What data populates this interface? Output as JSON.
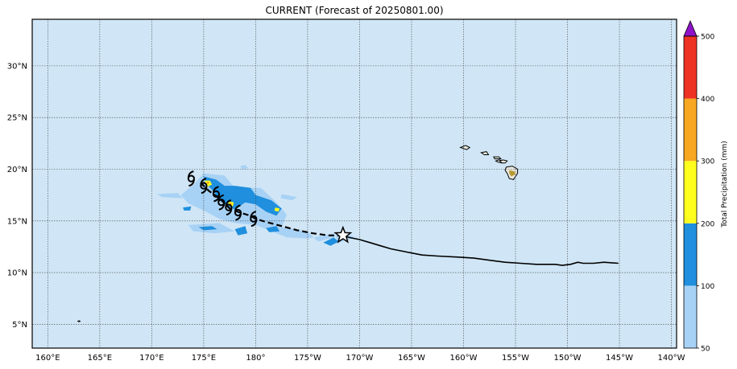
{
  "title": "CURRENT (Forecast of 20250801.00)",
  "map": {
    "lon_range": [
      158.5,
      220.5
    ],
    "lat_range": [
      2.7,
      34.5
    ],
    "lon_ticks": [
      {
        "lon": 160,
        "label": "160°E"
      },
      {
        "lon": 165,
        "label": "165°E"
      },
      {
        "lon": 170,
        "label": "170°E"
      },
      {
        "lon": 175,
        "label": "175°E"
      },
      {
        "lon": 180,
        "label": "180°"
      },
      {
        "lon": 185,
        "label": "175°W"
      },
      {
        "lon": 190,
        "label": "170°W"
      },
      {
        "lon": 195,
        "label": "165°W"
      },
      {
        "lon": 200,
        "label": "160°W"
      },
      {
        "lon": 205,
        "label": "155°W"
      },
      {
        "lon": 210,
        "label": "150°W"
      },
      {
        "lon": 215,
        "label": "145°W"
      },
      {
        "lon": 220,
        "label": "140°W"
      }
    ],
    "lat_ticks": [
      {
        "lat": 5,
        "label": "5°N"
      },
      {
        "lat": 10,
        "label": "10°N"
      },
      {
        "lat": 15,
        "label": "15°N"
      },
      {
        "lat": 20,
        "label": "20°N"
      },
      {
        "lat": 25,
        "label": "25°N"
      },
      {
        "lat": 30,
        "label": "30°N"
      }
    ],
    "ocean_color": "#d0e6f6",
    "grid": true
  },
  "colorbar": {
    "label": "Total Precipitation (mm)",
    "levels": [
      50,
      100,
      200,
      300,
      400,
      500
    ],
    "colors": [
      "#a8d2f5",
      "#1f8fde",
      "#ffff1e",
      "#f7a722",
      "#ee3224"
    ],
    "extend_color": "#8f12c8"
  },
  "track": {
    "observed": [
      [
        214.9,
        10.9
      ],
      [
        213.5,
        11.0
      ],
      [
        212.5,
        10.9
      ],
      [
        211.5,
        10.9
      ],
      [
        211.0,
        11.0
      ],
      [
        210.3,
        10.8
      ],
      [
        209.5,
        10.7
      ],
      [
        208.8,
        10.8
      ],
      [
        208.0,
        10.8
      ],
      [
        207.0,
        10.8
      ],
      [
        205.5,
        10.9
      ],
      [
        204.0,
        11.0
      ],
      [
        202.5,
        11.2
      ],
      [
        201.0,
        11.4
      ],
      [
        199.5,
        11.5
      ],
      [
        197.5,
        11.6
      ],
      [
        196.0,
        11.7
      ],
      [
        195.0,
        11.9
      ],
      [
        194.0,
        12.1
      ],
      [
        193.0,
        12.3
      ],
      [
        192.0,
        12.6
      ],
      [
        191.0,
        12.9
      ],
      [
        190.0,
        13.2
      ],
      [
        189.0,
        13.4
      ],
      [
        188.4,
        13.6
      ]
    ],
    "forecast": [
      [
        188.4,
        13.6
      ],
      [
        187.0,
        13.6
      ],
      [
        185.5,
        13.8
      ],
      [
        184.0,
        14.1
      ],
      [
        182.5,
        14.5
      ],
      [
        181.0,
        14.9
      ],
      [
        180.0,
        15.2
      ],
      [
        179.5,
        15.5
      ],
      [
        178.5,
        15.8
      ],
      [
        177.5,
        16.2
      ],
      [
        176.5,
        17.2
      ],
      [
        175.5,
        17.9
      ],
      [
        175.0,
        18.4
      ],
      [
        174.5,
        18.8
      ]
    ],
    "current_position": [
      188.4,
      13.6
    ],
    "cyclone_symbols": [
      [
        179.8,
        15.2
      ],
      [
        178.3,
        15.8
      ],
      [
        177.4,
        16.3
      ],
      [
        176.7,
        16.8
      ],
      [
        176.2,
        17.6
      ],
      [
        175.0,
        18.4
      ],
      [
        173.8,
        19.1
      ]
    ]
  },
  "islands": [
    [
      [
        199.7,
        22.1
      ],
      [
        200.2,
        22.3
      ],
      [
        200.6,
        22.1
      ],
      [
        200.3,
        21.9
      ]
    ],
    [
      [
        201.7,
        21.6
      ],
      [
        202.2,
        21.7
      ],
      [
        202.4,
        21.4
      ],
      [
        202.0,
        21.4
      ]
    ],
    [
      [
        202.9,
        21.2
      ],
      [
        203.4,
        21.2
      ],
      [
        203.6,
        21.0
      ],
      [
        203.0,
        21.0
      ]
    ],
    [
      [
        203.4,
        20.9
      ],
      [
        203.8,
        20.8
      ],
      [
        203.7,
        20.6
      ],
      [
        203.3,
        20.7
      ],
      [
        203.1,
        20.8
      ]
    ],
    [
      [
        203.5,
        20.8
      ],
      [
        203.8,
        20.9
      ],
      [
        204.2,
        20.8
      ],
      [
        204.0,
        20.6
      ],
      [
        203.7,
        20.6
      ]
    ],
    [
      [
        204.1,
        20.2
      ],
      [
        204.7,
        20.3
      ],
      [
        205.2,
        20.0
      ],
      [
        205.2,
        19.6
      ],
      [
        204.8,
        19.0
      ],
      [
        204.4,
        19.1
      ],
      [
        204.2,
        19.6
      ],
      [
        204.0,
        19.9
      ]
    ],
    [
      [
        162.9,
        5.3
      ],
      [
        163.0,
        5.35
      ],
      [
        163.1,
        5.3
      ],
      [
        163.0,
        5.25
      ]
    ]
  ],
  "precip": [
    {
      "level": 0,
      "poly": [
        [
          175.0,
          19.6
        ],
        [
          177.0,
          19.4
        ],
        [
          178.0,
          18.2
        ],
        [
          180.5,
          18.2
        ],
        [
          182.0,
          16.8
        ],
        [
          183.0,
          15.6
        ],
        [
          182.5,
          14.4
        ],
        [
          185.0,
          14.0
        ],
        [
          186.0,
          13.0
        ],
        [
          187.5,
          13.4
        ],
        [
          188.5,
          14.0
        ],
        [
          189.5,
          13.4
        ],
        [
          188.0,
          12.9
        ],
        [
          187.5,
          13.8
        ],
        [
          185.0,
          13.3
        ],
        [
          183.0,
          13.4
        ],
        [
          181.0,
          14.2
        ],
        [
          180.0,
          14.6
        ],
        [
          178.0,
          14.8
        ],
        [
          176.5,
          15.2
        ],
        [
          175.0,
          16.0
        ],
        [
          173.5,
          16.7
        ],
        [
          172.8,
          17.5
        ],
        [
          174.0,
          18.5
        ]
      ]
    },
    {
      "level": 0,
      "poly": [
        [
          170.5,
          17.6
        ],
        [
          172.5,
          17.7
        ],
        [
          173.0,
          17.2
        ],
        [
          171.0,
          17.3
        ]
      ]
    },
    {
      "level": 0,
      "poly": [
        [
          173.5,
          14.6
        ],
        [
          176.5,
          14.8
        ],
        [
          178.0,
          14.0
        ],
        [
          176.0,
          13.8
        ],
        [
          174.0,
          14.0
        ]
      ]
    },
    {
      "level": 0,
      "poly": [
        [
          178.5,
          20.3
        ],
        [
          179.0,
          20.4
        ],
        [
          179.3,
          20.1
        ],
        [
          178.7,
          20.0
        ]
      ]
    },
    {
      "level": 0,
      "poly": [
        [
          182.5,
          17.6
        ],
        [
          184.0,
          17.3
        ],
        [
          183.5,
          17.0
        ],
        [
          182.4,
          17.2
        ]
      ]
    },
    {
      "level": 1,
      "poly": [
        [
          175.0,
          19.3
        ],
        [
          176.2,
          19.0
        ],
        [
          177.0,
          18.4
        ],
        [
          178.0,
          18.4
        ],
        [
          179.5,
          18.2
        ],
        [
          180.0,
          17.5
        ],
        [
          181.5,
          17.0
        ],
        [
          182.5,
          16.2
        ],
        [
          182.0,
          15.5
        ],
        [
          181.0,
          15.9
        ],
        [
          180.0,
          16.6
        ],
        [
          179.0,
          16.8
        ],
        [
          178.0,
          16.1
        ],
        [
          177.2,
          16.5
        ],
        [
          176.5,
          17.0
        ],
        [
          176.0,
          17.8
        ],
        [
          175.2,
          18.6
        ]
      ]
    },
    {
      "level": 1,
      "poly": [
        [
          174.5,
          14.4
        ],
        [
          175.8,
          14.5
        ],
        [
          176.3,
          14.2
        ],
        [
          175.0,
          14.1
        ]
      ]
    },
    {
      "level": 1,
      "poly": [
        [
          178.0,
          14.2
        ],
        [
          179.0,
          14.5
        ],
        [
          179.2,
          13.8
        ],
        [
          178.3,
          13.6
        ]
      ]
    },
    {
      "level": 1,
      "poly": [
        [
          181.0,
          14.3
        ],
        [
          182.0,
          14.5
        ],
        [
          182.3,
          14.0
        ],
        [
          181.3,
          13.9
        ]
      ]
    },
    {
      "level": 1,
      "poly": [
        [
          186.5,
          12.9
        ],
        [
          187.5,
          13.4
        ],
        [
          188.0,
          13.0
        ],
        [
          187.2,
          12.6
        ]
      ]
    },
    {
      "level": 1,
      "poly": [
        [
          173.0,
          16.3
        ],
        [
          173.8,
          16.4
        ],
        [
          173.7,
          16.0
        ],
        [
          173.1,
          16.0
        ]
      ]
    },
    {
      "level": 2,
      "poly": [
        [
          175.1,
          18.9
        ],
        [
          175.6,
          18.9
        ],
        [
          175.8,
          18.5
        ],
        [
          175.3,
          18.3
        ]
      ]
    },
    {
      "level": 2,
      "poly": [
        [
          177.4,
          16.9
        ],
        [
          177.9,
          16.8
        ],
        [
          177.8,
          16.4
        ],
        [
          177.3,
          16.5
        ]
      ]
    },
    {
      "level": 2,
      "poly": [
        [
          181.9,
          16.3
        ],
        [
          182.3,
          16.2
        ],
        [
          182.2,
          15.9
        ],
        [
          181.8,
          16.0
        ]
      ]
    },
    {
      "level": 3,
      "poly": [
        [
          175.3,
          18.8
        ],
        [
          175.5,
          18.8
        ],
        [
          175.5,
          18.6
        ],
        [
          175.3,
          18.6
        ]
      ]
    },
    {
      "level": 3,
      "poly": [
        [
          177.5,
          16.8
        ],
        [
          177.7,
          16.7
        ],
        [
          177.7,
          16.5
        ],
        [
          177.5,
          16.6
        ]
      ]
    }
  ]
}
